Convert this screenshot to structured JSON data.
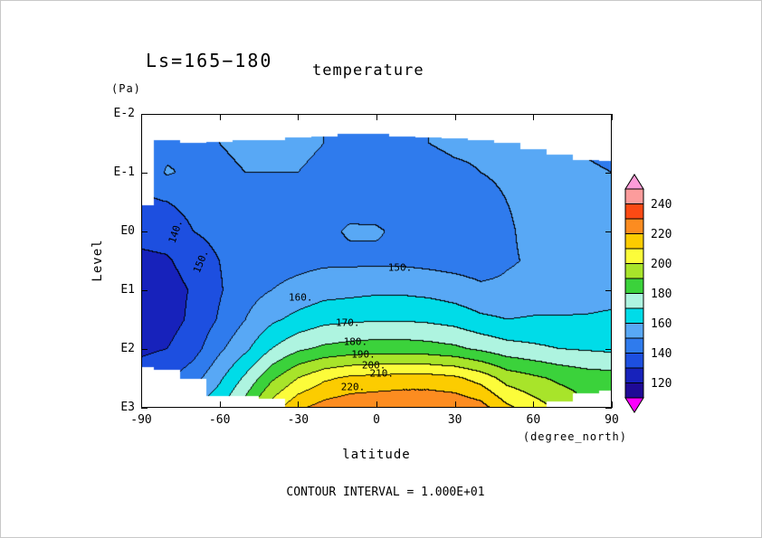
{
  "titles": {
    "ls_label": "Ls=165−180",
    "variable": "temperature"
  },
  "axes": {
    "y": {
      "unit_label": "(Pa)",
      "axis_label": "Level",
      "tick_labels": [
        "E-2",
        "E-1",
        "E0",
        "E1",
        "E2",
        "E3"
      ],
      "tick_values": [
        -2,
        -1,
        0,
        1,
        2,
        3
      ]
    },
    "x": {
      "axis_label": "latitude",
      "unit_label": "(degree_north)",
      "tick_labels": [
        "-90",
        "-60",
        "-30",
        "0",
        "30",
        "60",
        "90"
      ],
      "tick_values": [
        -90,
        -60,
        -30,
        0,
        30,
        60,
        90
      ]
    }
  },
  "footer": {
    "contour_note": "CONTOUR INTERVAL = 1.000E+01"
  },
  "colorbar": {
    "tick_labels": [
      "240",
      "220",
      "200",
      "180",
      "160",
      "140",
      "120"
    ],
    "tick_values": [
      240,
      220,
      200,
      180,
      160,
      140,
      120
    ],
    "band_min": 110,
    "band_step": 10,
    "colors_bottom_to_top": [
      "#1f0a96",
      "#1722bb",
      "#1d4fe0",
      "#2f7bed",
      "#58a8f5",
      "#00dce8",
      "#aef4e0",
      "#3bd23b",
      "#a8e42a",
      "#fcfc3a",
      "#fccc00",
      "#fc8c20",
      "#fc4a14",
      "#fc9c9c"
    ],
    "under_color": "#fc00fc",
    "over_color": "#fc9cd8"
  },
  "chart_data": {
    "type": "heatmap",
    "subtype": "filled-contour",
    "title": "temperature",
    "subtitle": "Ls=165-180",
    "xlabel": "latitude (degree_north)",
    "ylabel": "Level (Pa)",
    "xlim": [
      -90,
      90
    ],
    "ylim_log10_pa": [
      -2,
      3
    ],
    "y_axis_direction": "pressure increases downward",
    "contour_interval": 10,
    "x_lats": [
      -90,
      -80,
      -70,
      -60,
      -50,
      -40,
      -30,
      -20,
      -10,
      0,
      10,
      20,
      30,
      40,
      50,
      60,
      70,
      80,
      90
    ],
    "y_log10_pa": [
      -2,
      -1.5,
      -1,
      -0.5,
      0,
      0.5,
      1,
      1.5,
      2,
      2.5,
      3
    ],
    "temperature_k": [
      [
        146,
        147,
        149,
        150,
        151,
        151,
        151,
        150,
        149,
        148,
        149,
        150,
        151,
        151,
        151,
        150,
        150,
        149,
        148
      ],
      [
        146,
        147,
        149,
        150,
        151,
        151,
        151,
        150,
        149,
        148,
        149,
        150,
        151,
        151,
        151,
        150,
        150,
        149,
        148
      ],
      [
        142,
        151,
        148,
        149,
        150,
        150,
        150,
        149,
        147,
        146,
        147,
        148,
        149,
        150,
        151,
        151,
        151,
        151,
        150
      ],
      [
        138,
        140,
        143,
        146,
        148,
        149,
        149,
        148,
        147,
        146,
        146,
        147,
        148,
        148,
        150,
        152,
        153,
        153,
        153
      ],
      [
        133,
        134,
        140,
        143,
        146,
        147,
        148,
        148,
        151,
        151,
        148,
        147,
        147,
        146,
        149,
        152,
        153,
        154,
        154
      ],
      [
        128,
        129,
        134,
        140,
        145,
        146,
        147,
        148,
        148,
        148,
        148,
        147,
        146,
        145,
        149,
        151,
        152,
        153,
        154
      ],
      [
        124,
        126,
        131,
        139,
        146,
        150,
        153,
        156,
        157,
        158,
        158,
        157,
        155,
        152,
        152,
        153,
        154,
        155,
        156
      ],
      [
        124,
        126,
        132,
        141,
        150,
        158,
        163,
        167,
        168,
        169,
        169,
        168,
        166,
        162,
        160,
        161,
        161,
        161,
        162
      ],
      [
        128,
        130,
        136,
        148,
        158,
        170,
        178,
        182,
        184,
        185,
        185,
        184,
        182,
        178,
        174,
        172,
        170,
        169,
        168
      ],
      [
        135,
        138,
        146,
        158,
        172,
        188,
        200,
        208,
        212,
        213,
        214,
        214,
        212,
        206,
        196,
        192,
        188,
        185,
        184
      ],
      [
        148,
        150,
        160,
        168,
        185,
        205,
        218,
        224,
        227,
        228,
        229,
        229,
        228,
        224,
        212,
        205,
        198,
        192,
        190
      ]
    ],
    "column_top_log10_pa": [
      -0.45,
      -1.55,
      -1.5,
      -1.52,
      -1.55,
      -1.55,
      -1.6,
      -1.62,
      -1.66,
      -1.66,
      -1.62,
      -1.6,
      -1.58,
      -1.55,
      -1.5,
      -1.4,
      -1.3,
      -1.22,
      -1.2
    ],
    "column_bottom_log10_pa": [
      2.3,
      2.35,
      2.5,
      2.8,
      2.8,
      2.85,
      3.0,
      3.0,
      3.0,
      3.0,
      3.0,
      3.0,
      3.0,
      3.0,
      3.0,
      3.0,
      2.9,
      2.75,
      2.7
    ],
    "contour_labels": [
      {
        "text": "140.",
        "lat": -77,
        "log10_pa": 0.0,
        "rot": -72
      },
      {
        "text": "150.",
        "lat": -67,
        "log10_pa": 0.5,
        "rot": -68
      },
      {
        "text": "150.",
        "lat": 9,
        "log10_pa": 0.62,
        "rot": 0
      },
      {
        "text": "160.",
        "lat": -29,
        "log10_pa": 1.12,
        "rot": 0
      },
      {
        "text": "170.",
        "lat": -11,
        "log10_pa": 1.55,
        "rot": 0
      },
      {
        "text": "180.",
        "lat": -8,
        "log10_pa": 1.87,
        "rot": 0
      },
      {
        "text": "190.",
        "lat": -5,
        "log10_pa": 2.09,
        "rot": 0
      },
      {
        "text": "200.",
        "lat": -1,
        "log10_pa": 2.27,
        "rot": 0
      },
      {
        "text": "210.",
        "lat": 2,
        "log10_pa": 2.42,
        "rot": 0
      },
      {
        "text": "220.",
        "lat": -9,
        "log10_pa": 2.64,
        "rot": 0
      }
    ]
  }
}
